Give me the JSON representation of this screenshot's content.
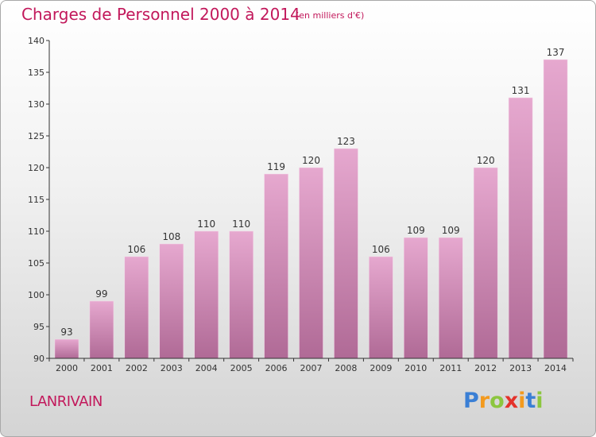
{
  "header": {
    "title": "Charges de Personnel 2000 à 2014",
    "subtitle": "(en milliers d'€)"
  },
  "footer": {
    "commune": "LANRIVAIN"
  },
  "logo": {
    "letters": [
      "P",
      "r",
      "o",
      "x",
      "i",
      "t",
      "i"
    ],
    "colors": [
      "#3a7fd5",
      "#f39a1e",
      "#8cc63f",
      "#e4322b",
      "#f39a1e",
      "#3a7fd5",
      "#8cc63f"
    ]
  },
  "colors": {
    "bar_top": "#e6a8cf",
    "bar_bottom": "#b06a96",
    "accent": "#c2185b",
    "axis": "#333333"
  },
  "chart_data": {
    "type": "bar",
    "categories": [
      "2000",
      "2001",
      "2002",
      "2003",
      "2004",
      "2005",
      "2006",
      "2007",
      "2008",
      "2009",
      "2010",
      "2011",
      "2012",
      "2013",
      "2014"
    ],
    "values": [
      93,
      99,
      106,
      108,
      110,
      110,
      119,
      120,
      123,
      106,
      109,
      109,
      120,
      131,
      137
    ],
    "ylim": [
      90,
      140
    ],
    "yticks": [
      90,
      95,
      100,
      105,
      110,
      115,
      120,
      125,
      130,
      135,
      140
    ],
    "grid": false,
    "data_labels": true
  }
}
